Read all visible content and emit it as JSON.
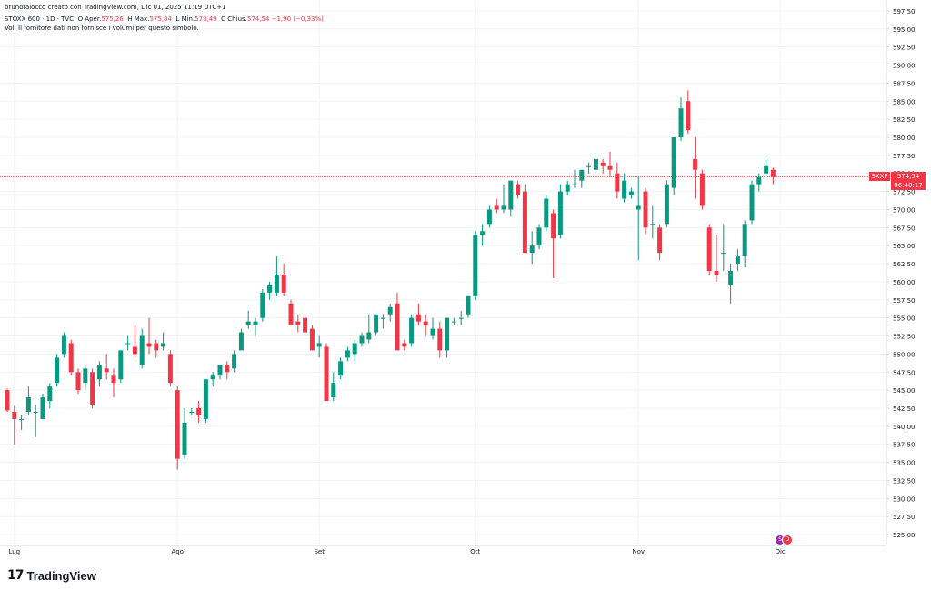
{
  "header": {
    "line1": "brunofalocco creato con TradingView.com, Dic 01, 2025 11:19 UTC+1",
    "symbol": "STOXX 600 · 1D · TVC",
    "open_label": "O",
    "open_prefix": "Aper.",
    "open": "575,26",
    "high_label": "H",
    "high_prefix": "Max.",
    "high": "575,84",
    "low_label": "L",
    "low_prefix": "Min.",
    "low": "573,49",
    "close_label": "C",
    "close_prefix": "Chius.",
    "close": "574,54",
    "change": "−1,90 (−0,33%)",
    "vol_note": "Vol: Il fornitore dati non fornisce i volumi per questo simbolo."
  },
  "last_price": {
    "symbol": "SXXP",
    "price": "574,54",
    "countdown": "06:40:17"
  },
  "branding": {
    "logo": "17",
    "name": "TradingView"
  },
  "colors": {
    "up": "#089981",
    "down": "#f23645",
    "grid": "#f0f3fa",
    "axis_text": "#131722",
    "price_line": "#f23645"
  },
  "event_markers": [
    "split-event",
    "dividend-event"
  ],
  "chart_data": {
    "type": "candlestick",
    "y_ticks": [
      525,
      527.5,
      530,
      532.5,
      535,
      537.5,
      540,
      542.5,
      545,
      547.5,
      550,
      552.5,
      555,
      557.5,
      560,
      562.5,
      565,
      567.5,
      570,
      572.5,
      575,
      577.5,
      580,
      582.5,
      585,
      587.5,
      590,
      592.5,
      595,
      597.5
    ],
    "y_tick_labels": [
      "525,00",
      "527,50",
      "530,00",
      "532,50",
      "535,00",
      "537,50",
      "540,00",
      "542,50",
      "545,00",
      "547,50",
      "550,00",
      "552,50",
      "555,00",
      "557,50",
      "560,00",
      "562,50",
      "565,00",
      "567,50",
      "570,00",
      "572,50",
      "575,00",
      "577,50",
      "580,00",
      "582,50",
      "585,00",
      "587,50",
      "590,00",
      "592,50",
      "595,00",
      "597,50"
    ],
    "ylim": [
      523.5,
      599
    ],
    "x_labels": [
      {
        "label": "Lug",
        "index": 1
      },
      {
        "label": "Ago",
        "index": 24
      },
      {
        "label": "Set",
        "index": 44
      },
      {
        "label": "Ott",
        "index": 66
      },
      {
        "label": "Nov",
        "index": 89
      },
      {
        "label": "Dic",
        "index": 109
      }
    ],
    "last_close": 574.54,
    "candles": [
      [
        545.0,
        545.2,
        542.0,
        542.2
      ],
      [
        542.0,
        542.8,
        537.5,
        541.0
      ],
      [
        541.0,
        541.5,
        539.5,
        541.0
      ],
      [
        542.0,
        545.5,
        541.5,
        544.0
      ],
      [
        542.0,
        543.0,
        538.5,
        542.0
      ],
      [
        541.0,
        544.5,
        541.0,
        544.0
      ],
      [
        543.5,
        546.0,
        542.5,
        545.5
      ],
      [
        546.0,
        550.0,
        545.5,
        549.5
      ],
      [
        550.0,
        553.0,
        549.5,
        552.5
      ],
      [
        551.5,
        552.0,
        547.0,
        547.5
      ],
      [
        547.5,
        548.0,
        544.5,
        545.0
      ],
      [
        546.0,
        548.5,
        545.0,
        548.0
      ],
      [
        547.5,
        548.0,
        542.5,
        543.0
      ],
      [
        546.5,
        549.0,
        545.5,
        548.5
      ],
      [
        548.0,
        550.0,
        546.5,
        547.5
      ],
      [
        547.0,
        548.0,
        544.0,
        546.0
      ],
      [
        546.5,
        550.5,
        546.0,
        550.5
      ],
      [
        551.5,
        552.5,
        550.5,
        551.5
      ],
      [
        551.0,
        554.0,
        549.5,
        550.0
      ],
      [
        548.5,
        553.5,
        548.0,
        552.5
      ],
      [
        551.5,
        555.0,
        550.0,
        551.0
      ],
      [
        551.5,
        552.0,
        549.5,
        550.5
      ],
      [
        551.0,
        553.0,
        550.5,
        551.5
      ],
      [
        550.0,
        550.5,
        545.5,
        546.0
      ],
      [
        545.0,
        545.5,
        534.0,
        535.5
      ],
      [
        536.0,
        542.5,
        535.5,
        540.5
      ],
      [
        542.0,
        542.5,
        541.5,
        542.0
      ],
      [
        542.5,
        543.5,
        540.5,
        541.5
      ],
      [
        541.0,
        546.5,
        540.5,
        546.5
      ],
      [
        546.5,
        547.5,
        545.5,
        547.0
      ],
      [
        547.0,
        548.5,
        546.5,
        548.5
      ],
      [
        548.5,
        549.0,
        546.5,
        547.5
      ],
      [
        548.0,
        550.5,
        547.5,
        550.0
      ],
      [
        550.5,
        553.5,
        550.5,
        553.0
      ],
      [
        554.0,
        556.0,
        553.5,
        554.5
      ],
      [
        554.0,
        555.0,
        552.5,
        554.5
      ],
      [
        555.0,
        559.0,
        554.5,
        558.5
      ],
      [
        558.5,
        560.0,
        557.5,
        559.5
      ],
      [
        558.5,
        563.5,
        558.0,
        561.0
      ],
      [
        561.0,
        562.5,
        558.0,
        558.5
      ],
      [
        557.0,
        557.5,
        554.0,
        554.0
      ],
      [
        554.5,
        555.5,
        553.0,
        554.0
      ],
      [
        555.0,
        555.5,
        553.0,
        553.0
      ],
      [
        553.5,
        554.0,
        550.5,
        550.5
      ],
      [
        551.0,
        552.5,
        549.5,
        551.5
      ],
      [
        551.0,
        551.5,
        543.5,
        543.5
      ],
      [
        544.0,
        547.5,
        543.5,
        546.0
      ],
      [
        547.0,
        549.5,
        546.5,
        549.0
      ],
      [
        549.5,
        551.0,
        549.0,
        550.5
      ],
      [
        550.0,
        552.0,
        549.0,
        551.5
      ],
      [
        551.5,
        553.0,
        551.0,
        552.5
      ],
      [
        552.0,
        555.5,
        551.5,
        553.0
      ],
      [
        553.0,
        555.5,
        552.5,
        555.5
      ],
      [
        555.0,
        555.5,
        553.5,
        555.0
      ],
      [
        555.5,
        557.0,
        554.5,
        556.5
      ],
      [
        557.0,
        558.5,
        550.5,
        550.5
      ],
      [
        551.5,
        552.0,
        550.5,
        551.0
      ],
      [
        551.5,
        555.5,
        551.0,
        555.0
      ],
      [
        555.5,
        557.0,
        554.0,
        554.5
      ],
      [
        554.5,
        555.5,
        552.5,
        554.0
      ],
      [
        552.5,
        555.0,
        552.0,
        553.5
      ],
      [
        553.5,
        554.5,
        549.5,
        550.5
      ],
      [
        550.5,
        555.0,
        549.5,
        555.0
      ],
      [
        554.5,
        555.0,
        554.0,
        554.5
      ],
      [
        555.0,
        556.0,
        554.0,
        555.0
      ],
      [
        555.5,
        558.0,
        555.0,
        558.0
      ],
      [
        558.0,
        567.0,
        557.5,
        566.5
      ],
      [
        566.5,
        568.0,
        565.0,
        567.0
      ],
      [
        568.0,
        570.5,
        567.5,
        570.0
      ],
      [
        570.5,
        571.5,
        569.5,
        570.0
      ],
      [
        570.0,
        573.5,
        569.5,
        570.5
      ],
      [
        570.0,
        574.0,
        569.0,
        574.0
      ],
      [
        573.5,
        574.0,
        571.5,
        572.0
      ],
      [
        572.5,
        573.5,
        564.0,
        564.0
      ],
      [
        564.0,
        567.0,
        562.5,
        565.0
      ],
      [
        565.0,
        568.0,
        564.5,
        567.5
      ],
      [
        567.5,
        572.0,
        567.0,
        571.5
      ],
      [
        569.5,
        570.0,
        560.5,
        566.0
      ],
      [
        566.5,
        573.5,
        566.0,
        572.5
      ],
      [
        572.5,
        574.0,
        572.0,
        573.5
      ],
      [
        573.5,
        575.5,
        573.0,
        573.5
      ],
      [
        574.0,
        575.5,
        573.0,
        575.5
      ],
      [
        576.0,
        576.5,
        575.0,
        576.0
      ],
      [
        575.5,
        577.0,
        575.0,
        577.0
      ],
      [
        576.5,
        577.0,
        575.0,
        576.0
      ],
      [
        576.0,
        578.0,
        574.5,
        575.5
      ],
      [
        575.0,
        576.5,
        571.5,
        572.5
      ],
      [
        571.5,
        575.0,
        571.0,
        574.0
      ],
      [
        572.0,
        573.0,
        571.5,
        572.5
      ],
      [
        570.0,
        574.5,
        563.0,
        570.5
      ],
      [
        572.5,
        573.0,
        566.5,
        567.5
      ],
      [
        568.0,
        570.5,
        566.0,
        568.0
      ],
      [
        567.5,
        568.0,
        563.0,
        564.0
      ],
      [
        568.0,
        574.0,
        567.5,
        573.5
      ],
      [
        573.0,
        580.0,
        572.0,
        580.0
      ],
      [
        580.0,
        585.5,
        579.5,
        584.0
      ],
      [
        585.0,
        586.5,
        580.5,
        581.0
      ],
      [
        577.0,
        580.0,
        571.5,
        575.5
      ],
      [
        575.0,
        575.5,
        570.0,
        570.5
      ],
      [
        567.5,
        568.0,
        561.0,
        561.5
      ],
      [
        561.5,
        566.5,
        560.0,
        561.0
      ],
      [
        564.0,
        568.0,
        561.5,
        564.0
      ],
      [
        559.5,
        562.5,
        557.0,
        561.5
      ],
      [
        562.5,
        564.5,
        561.5,
        563.5
      ],
      [
        563.5,
        568.5,
        562.0,
        568.0
      ],
      [
        568.5,
        574.0,
        568.0,
        573.5
      ],
      [
        573.5,
        575.0,
        572.5,
        574.5
      ],
      [
        575.0,
        577.0,
        574.5,
        576.0
      ],
      [
        575.5,
        575.8,
        573.5,
        574.5
      ]
    ]
  }
}
